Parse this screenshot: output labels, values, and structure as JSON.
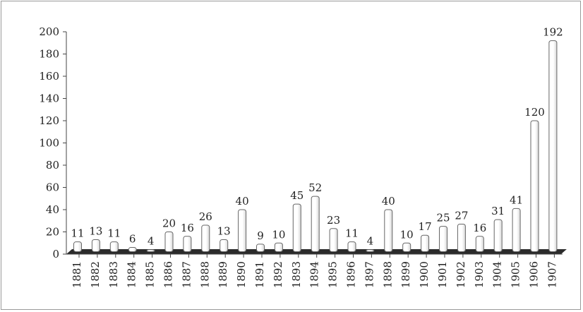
{
  "chart_data": {
    "type": "bar",
    "title": "",
    "xlabel": "",
    "ylabel": "",
    "ylim": [
      0,
      200
    ],
    "yticks": [
      0,
      20,
      40,
      60,
      80,
      100,
      120,
      140,
      160,
      180,
      200
    ],
    "grid": false,
    "legend": "none",
    "categories": [
      "1881",
      "1882",
      "1883",
      "1884",
      "1885",
      "1886",
      "1887",
      "1888",
      "1889",
      "1890",
      "1891",
      "1892",
      "1893",
      "1894",
      "1895",
      "1896",
      "1897",
      "1898",
      "1899",
      "1900",
      "1901",
      "1902",
      "1903",
      "1904",
      "1905",
      "1906",
      "1907"
    ],
    "values": [
      11,
      13,
      11,
      6,
      4,
      20,
      16,
      26,
      13,
      40,
      9,
      10,
      45,
      52,
      23,
      11,
      4,
      40,
      10,
      17,
      25,
      27,
      16,
      31,
      41,
      120,
      192
    ],
    "data_labels": [
      "11",
      "13",
      "11",
      "6",
      "4",
      "20",
      "16",
      "26",
      "13",
      "40",
      "9",
      "10",
      "45",
      "52",
      "23",
      "11",
      "4",
      "40",
      "10",
      "17",
      "25",
      "27",
      "16",
      "31",
      "41",
      "120",
      "192"
    ],
    "colors": {
      "bar_fill": "#ffffff",
      "bar_shade": "#d8d8d8",
      "bar_stroke": "#666666",
      "floor": "#2b2b2b",
      "text": "#222222"
    }
  }
}
